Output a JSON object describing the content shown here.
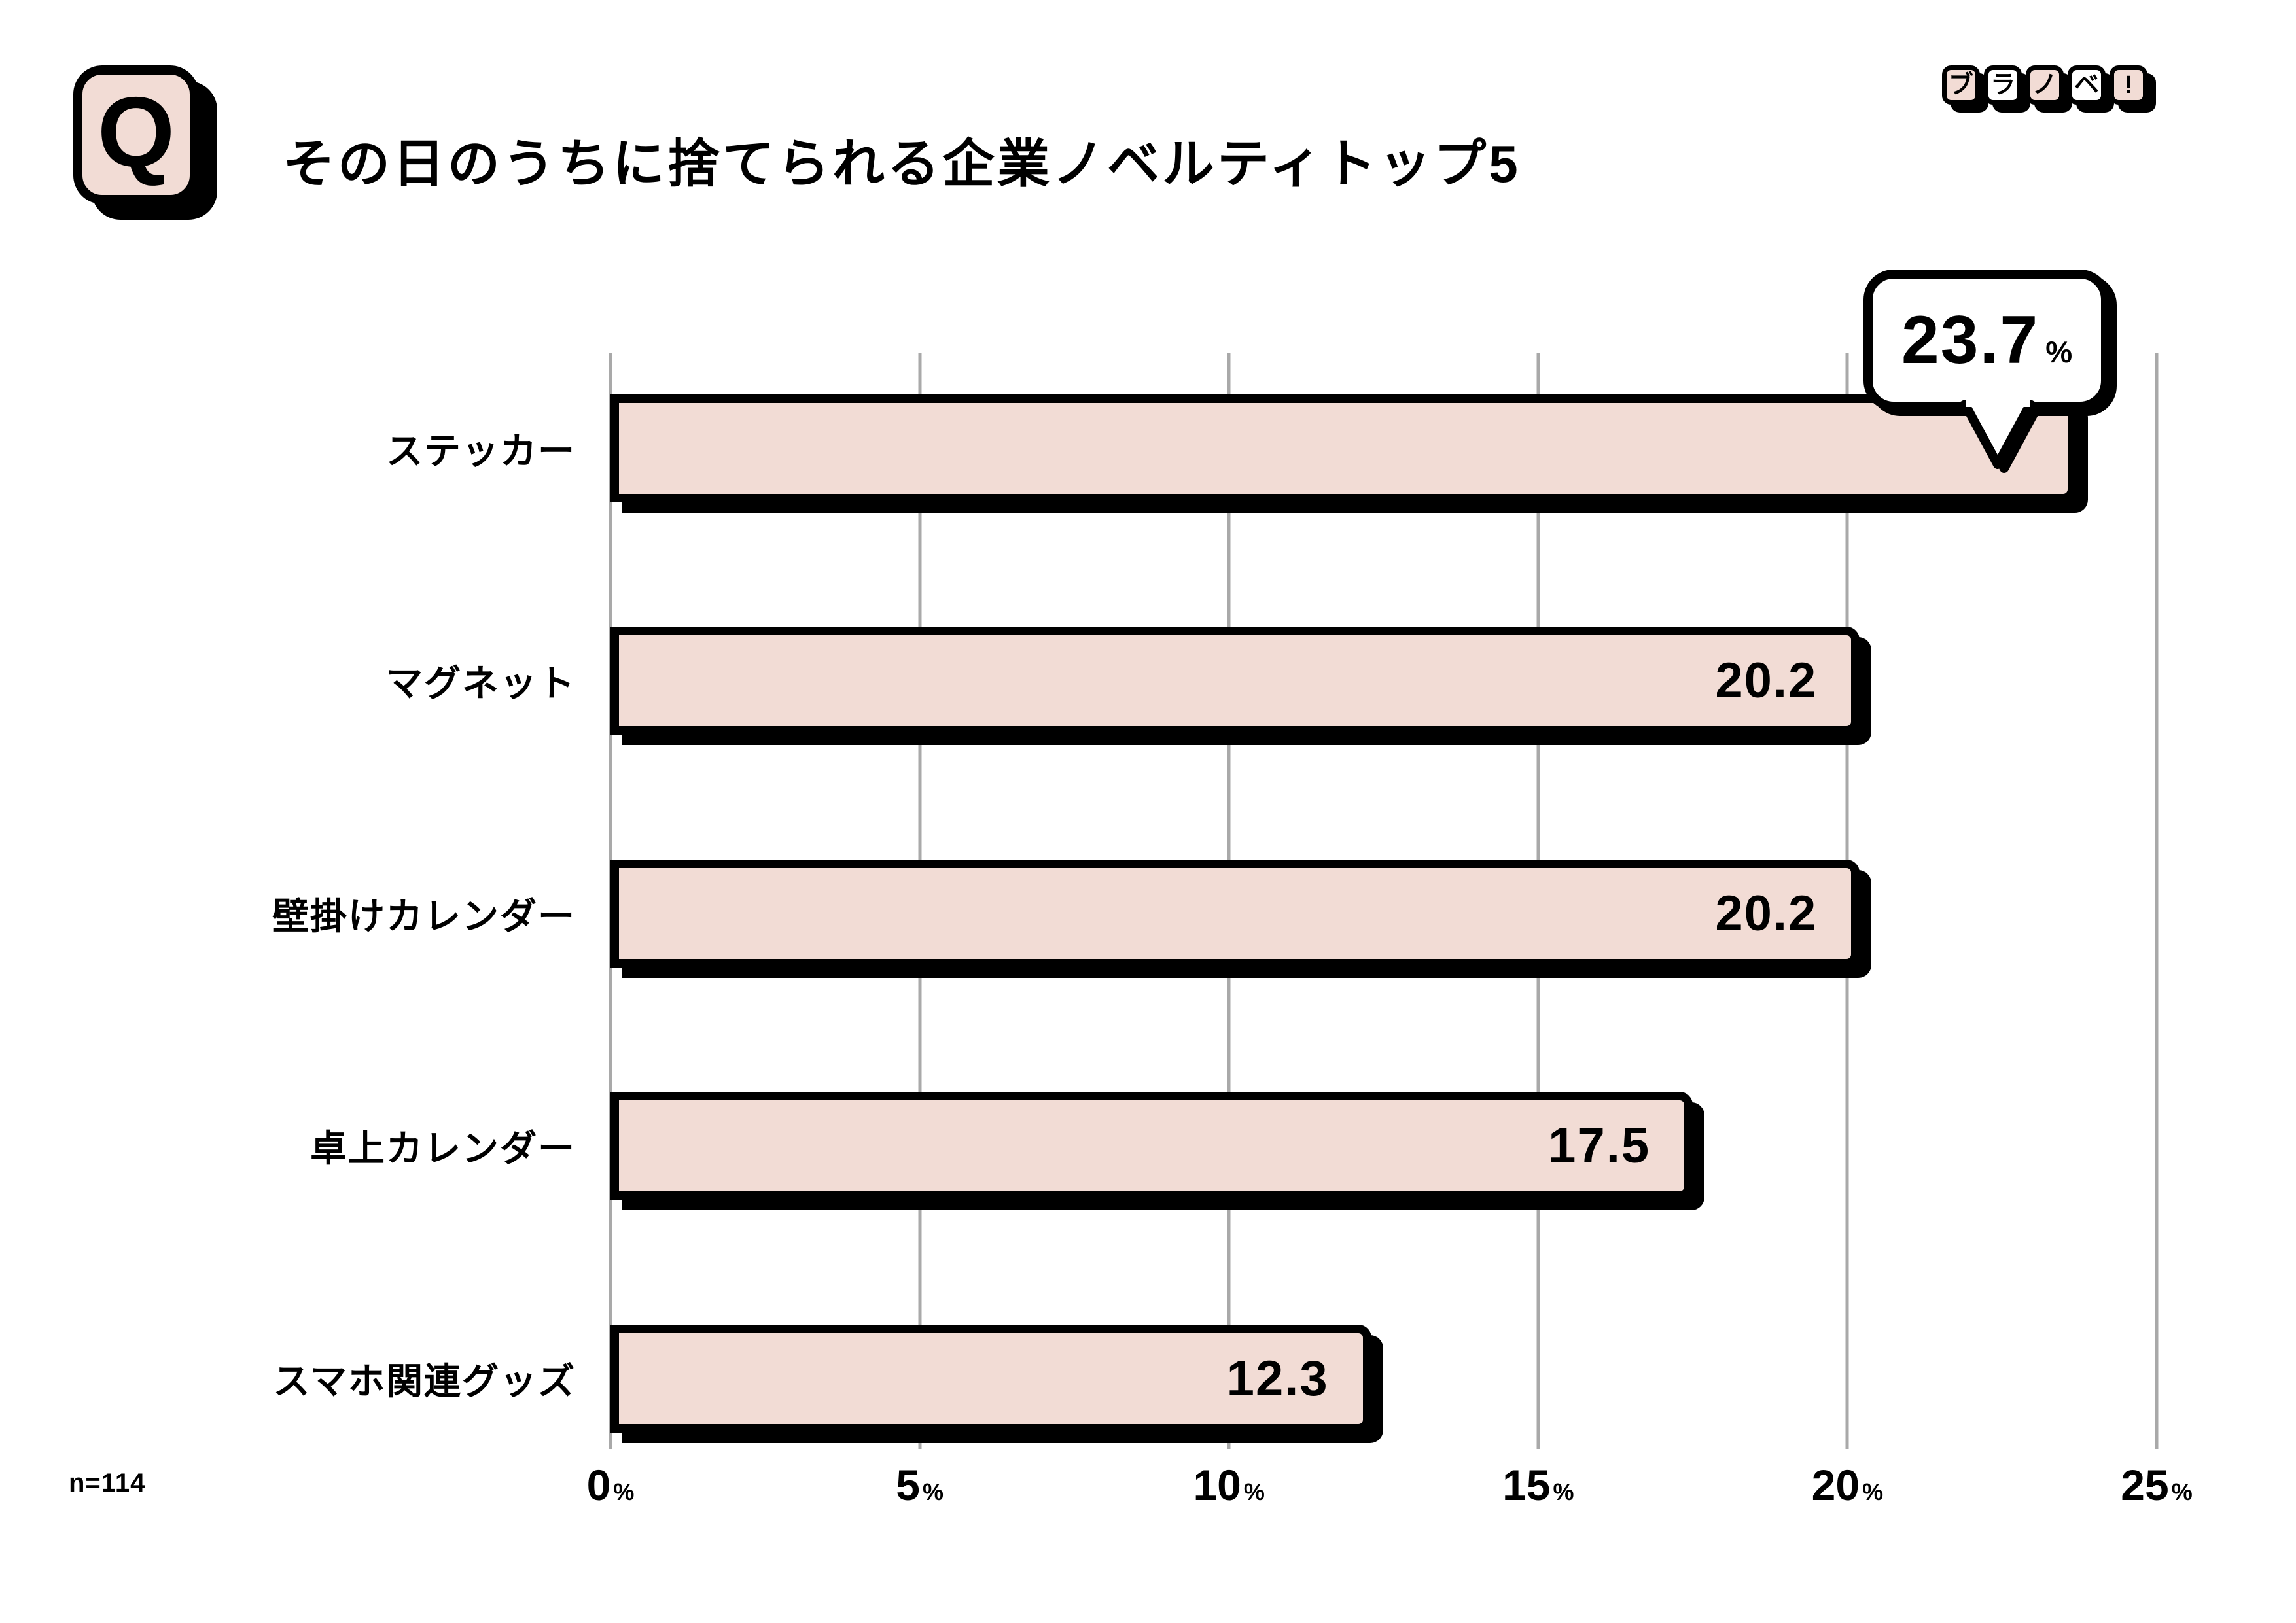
{
  "page": {
    "background": "#FFFFFF"
  },
  "header": {
    "q_badge": "Q",
    "title": "その日のうちに捨てられる企業ノベルティトップ5"
  },
  "logo": {
    "name": "ブラノベ!",
    "tiles": [
      {
        "char": "ブ",
        "bg": "#F2DCD5"
      },
      {
        "char": "ラ",
        "bg": "#FFFFFF"
      },
      {
        "char": "ノ",
        "bg": "#F2DCD5"
      },
      {
        "char": "ベ",
        "bg": "#FFFFFF"
      },
      {
        "char": "!",
        "bg": "#F2DCD5"
      }
    ]
  },
  "chart_data": {
    "type": "bar",
    "orientation": "horizontal",
    "title": "その日のうちに捨てられる企業ノベルティトップ5",
    "categories": [
      "ステッカー",
      "マグネット",
      "壁掛けカレンダー",
      "卓上カレンダー",
      "スマホ関連グッズ"
    ],
    "values": [
      23.7,
      20.2,
      20.2,
      17.5,
      12.3
    ],
    "value_labels": [
      "23.7",
      "20.2",
      "20.2",
      "17.5",
      "12.3"
    ],
    "callout": {
      "index": 0,
      "value": "23.7",
      "suffix": "%"
    },
    "x_ticks": [
      "0",
      "5",
      "10",
      "15",
      "20",
      "25"
    ],
    "tick_suffix": "%",
    "xlim": [
      0,
      25
    ],
    "grid": true,
    "legend": "none",
    "bar_color": "#F2DCD5",
    "grid_color": "#A9A9A9",
    "outline_color": "#000000"
  },
  "footnote": {
    "sample_size": "n=114"
  }
}
